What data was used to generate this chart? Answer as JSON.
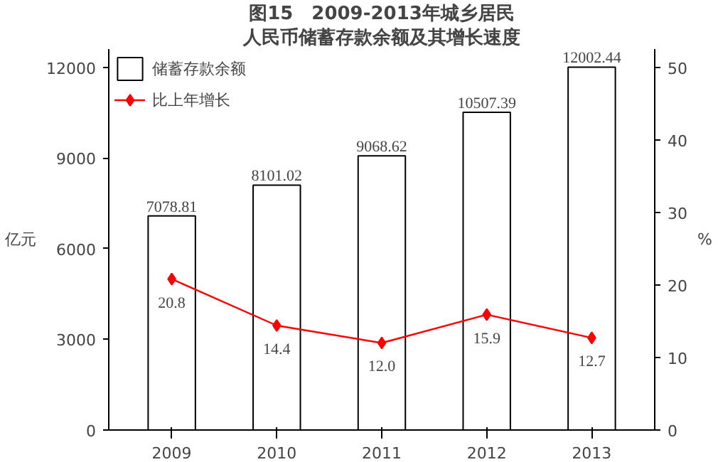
{
  "chart_data": {
    "type": "bar",
    "title": "图15　2009-2013年城乡居民",
    "subtitle": "人民币储蓄存款余额及其增长速度",
    "ylabel": "亿元",
    "y2label": "%",
    "categories": [
      "2009",
      "2010",
      "2011",
      "2012",
      "2013"
    ],
    "series": [
      {
        "name": "储蓄存款余额",
        "type": "bar",
        "color": "#ffffff",
        "values": [
          7078.81,
          8101.02,
          9068.62,
          10507.39,
          12002.44
        ],
        "value_labels": [
          "7078.81",
          "8101.02",
          "9068.62",
          "10507.39",
          "12002.44"
        ]
      },
      {
        "name": "比上年增长",
        "type": "line",
        "axis": "y2",
        "color": "#ff0000",
        "marker": "diamond",
        "values": [
          20.8,
          14.4,
          12.0,
          15.9,
          12.7
        ],
        "value_labels": [
          "20.8",
          "14.4",
          "12.0",
          "15.9",
          "12.7"
        ]
      }
    ],
    "ylim": [
      0,
      12600
    ],
    "yticks": [
      0,
      3000,
      6000,
      9000,
      12000
    ],
    "y2lim": [
      0,
      52.5
    ],
    "y2ticks": [
      0,
      10,
      20,
      30,
      40,
      50
    ],
    "grid": false,
    "legend": "top left"
  }
}
